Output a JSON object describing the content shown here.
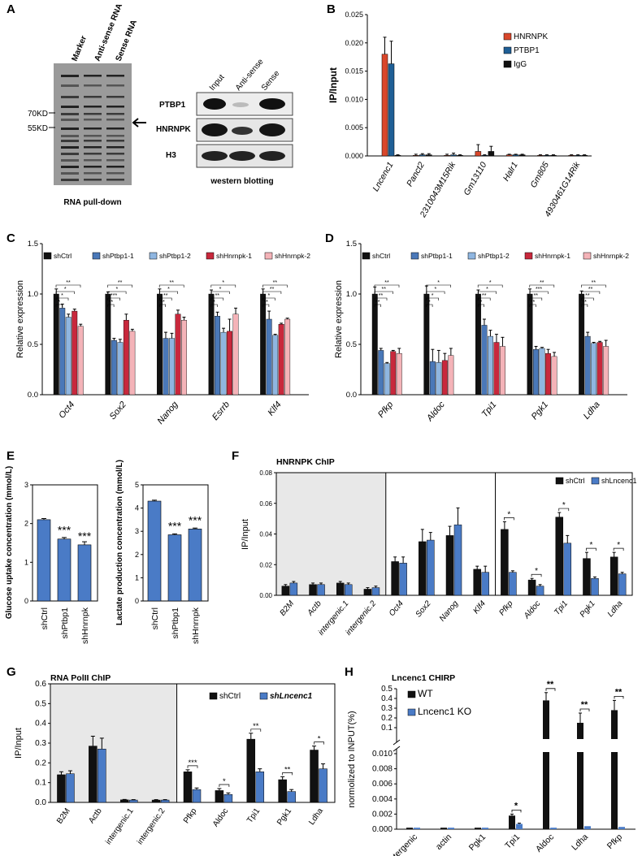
{
  "colors": {
    "hnrnpk": "#d9472b",
    "ptbp1": "#1f5f96",
    "igg": "#111111",
    "shctrl": "#111111",
    "shptbp1_1": "#4a78b8",
    "shptbp1_2": "#8fb6e0",
    "shhnrnpk_1": "#c8283c",
    "shhnrnpk_2": "#f4b3b8",
    "blue": "#4a7bc6",
    "gray_bg": "#e8e8e8"
  },
  "panels": {
    "A": {
      "letter": "A",
      "gel_lanes": [
        "Marker",
        "Anti-sense RNA",
        "Sense RNA"
      ],
      "markers": [
        "70KD",
        "55KD"
      ],
      "gel_caption": "RNA pull-down",
      "wb_lanes": [
        "Input",
        "Anti-sense",
        "Sense"
      ],
      "wb_rows": [
        "PTBP1",
        "HNRNPK",
        "H3"
      ],
      "wb_caption": "western blotting"
    },
    "B": {
      "letter": "B"
    },
    "C": {
      "letter": "C"
    },
    "D": {
      "letter": "D"
    },
    "E": {
      "letter": "E"
    },
    "F": {
      "letter": "F",
      "title": "HNRNPK ChIP"
    },
    "G": {
      "letter": "G",
      "title": "RNA PolII ChIP"
    },
    "H": {
      "letter": "H",
      "title": "Lncenc1 CHIRP"
    }
  },
  "chart_data": [
    {
      "id": "B",
      "type": "bar",
      "ylabel": "IP/Input",
      "ylim": [
        0,
        0.025
      ],
      "yticks": [
        "0.000",
        "0.005",
        "0.010",
        "0.015",
        "0.020",
        "0.025"
      ],
      "categories": [
        "Lncenc1",
        "Panct2",
        "2310043M15Rik",
        "Gm13110",
        "Halr1",
        "Gm805",
        "4930461G14Rik"
      ],
      "series": [
        {
          "name": "HNRNPK",
          "values": [
            0.018,
            0.0001,
            0.0001,
            0.0008,
            0.0002,
            0.0001,
            0.0001
          ],
          "err": [
            0.003,
            0.0002,
            0.0002,
            0.0012,
            0.0001,
            0.0001,
            0.0001
          ]
        },
        {
          "name": "PTBP1",
          "values": [
            0.0163,
            0.0002,
            0.0002,
            0.0001,
            0.0002,
            0.0001,
            0.0001
          ],
          "err": [
            0.004,
            0.0002,
            0.0003,
            0.0001,
            0.0001,
            0.0001,
            0.0001
          ]
        },
        {
          "name": "IgG",
          "values": [
            0.0001,
            0.0002,
            0.0001,
            0.0008,
            0.0002,
            0.0001,
            0.0001
          ],
          "err": [
            0.0001,
            0.0002,
            0.0001,
            0.0009,
            0.0001,
            0.0001,
            0.0001
          ]
        }
      ],
      "legend": "top-right"
    },
    {
      "id": "C",
      "type": "bar",
      "ylabel": "Relative expression",
      "ylim": [
        0,
        1.5
      ],
      "yticks": [
        "0.0",
        "0.5",
        "1.0",
        "1.5"
      ],
      "categories": [
        "Oct4",
        "Sox2",
        "Nanog",
        "Esrrb",
        "Klf4"
      ],
      "series": [
        {
          "name": "shCtrl",
          "values": [
            1.0,
            1.0,
            1.0,
            1.0,
            1.0
          ],
          "err": [
            0.05,
            0.02,
            0.05,
            0.04,
            0.05
          ]
        },
        {
          "name": "shPtbp1-1",
          "values": [
            0.86,
            0.54,
            0.56,
            0.78,
            0.75
          ],
          "err": [
            0.04,
            0.02,
            0.06,
            0.04,
            0.08
          ]
        },
        {
          "name": "shPtbp1-2",
          "values": [
            0.77,
            0.52,
            0.56,
            0.62,
            0.59
          ],
          "err": [
            0.03,
            0.03,
            0.05,
            0.04,
            0.01
          ]
        },
        {
          "name": "shHnrnpk-1",
          "values": [
            0.83,
            0.74,
            0.8,
            0.63,
            0.7
          ],
          "err": [
            0.02,
            0.06,
            0.04,
            0.12,
            0.01
          ]
        },
        {
          "name": "shHnrnpk-2",
          "values": [
            0.68,
            0.63,
            0.74,
            0.8,
            0.75
          ],
          "err": [
            0.02,
            0.02,
            0.03,
            0.06,
            0.01
          ]
        }
      ],
      "sig": [
        "*",
        "*",
        "*",
        "**"
      ],
      "sig_by_group": [
        [
          "*",
          "*",
          "*",
          "**"
        ],
        [
          "**",
          "***",
          "*",
          "**"
        ],
        [
          "**",
          "**",
          "*",
          "**"
        ],
        [
          "*",
          "**",
          "*",
          "*"
        ],
        [
          "**",
          "*",
          "**",
          "**"
        ]
      ],
      "legend": "top"
    },
    {
      "id": "D",
      "type": "bar",
      "ylabel": "Relative expression",
      "ylim": [
        0,
        1.5
      ],
      "yticks": [
        "0.0",
        "0.5",
        "1.0",
        "1.5"
      ],
      "categories": [
        "Pfkp",
        "Aldoc",
        "Tpi1",
        "Pgk1",
        "Ldha"
      ],
      "series": [
        {
          "name": "shCtrl",
          "values": [
            1.0,
            1.0,
            1.0,
            1.0,
            1.0
          ],
          "err": [
            0.07,
            0.08,
            0.04,
            0.05,
            0.03
          ]
        },
        {
          "name": "shPtbp1-1",
          "values": [
            0.44,
            0.33,
            0.69,
            0.45,
            0.58
          ],
          "err": [
            0.02,
            0.12,
            0.06,
            0.03,
            0.04
          ]
        },
        {
          "name": "shPtbp1-2",
          "values": [
            0.31,
            0.32,
            0.58,
            0.46,
            0.51
          ],
          "err": [
            0.01,
            0.12,
            0.06,
            0.01,
            0.01
          ]
        },
        {
          "name": "shHnrnpk-1",
          "values": [
            0.43,
            0.34,
            0.52,
            0.41,
            0.52
          ],
          "err": [
            0.01,
            0.07,
            0.08,
            0.04,
            0.01
          ]
        },
        {
          "name": "shHnrnpk-2",
          "values": [
            0.41,
            0.39,
            0.48,
            0.38,
            0.48
          ],
          "err": [
            0.05,
            0.07,
            0.09,
            0.04,
            0.06
          ]
        }
      ],
      "sig_by_group": [
        [
          "**",
          "**",
          "**",
          "**"
        ],
        [
          "*",
          "*",
          "*",
          "*"
        ],
        [
          "*",
          "**",
          "*",
          "*"
        ],
        [
          "**",
          "**",
          "***",
          "**"
        ],
        [
          "**",
          "**",
          "**",
          "**"
        ]
      ],
      "legend": "top"
    },
    {
      "id": "E1",
      "type": "bar",
      "ylabel": "Glucose uptake concentration (mmol/L)",
      "ylim": [
        0,
        3
      ],
      "yticks": [
        "0",
        "1",
        "2",
        "3"
      ],
      "categories": [
        "shCtrl",
        "shPtbp1",
        "shHnrnpk"
      ],
      "values": [
        2.1,
        1.6,
        1.45
      ],
      "err": [
        0.03,
        0.04,
        0.08
      ],
      "sig": [
        "",
        "***",
        "***"
      ]
    },
    {
      "id": "E2",
      "type": "bar",
      "ylabel": "Lactate production concentration (mmol/L)",
      "ylim": [
        0,
        5
      ],
      "yticks": [
        "0",
        "1",
        "2",
        "3",
        "4",
        "5"
      ],
      "categories": [
        "shCtrl",
        "shPtbp1",
        "shHnrnpk"
      ],
      "values": [
        4.3,
        2.85,
        3.1
      ],
      "err": [
        0.04,
        0.04,
        0.04
      ],
      "sig": [
        "",
        "***",
        "***"
      ]
    },
    {
      "id": "F",
      "type": "bar",
      "ylabel": "IP/Input",
      "ylim": [
        0,
        0.08
      ],
      "yticks": [
        "0.00",
        "0.02",
        "0.04",
        "0.06",
        "0.08"
      ],
      "categories": [
        "B2M",
        "Actb",
        "intergenic.1",
        "intergenic.2",
        "Oct4",
        "Sox2",
        "Nanog",
        "Klf4",
        "Pfkp",
        "Aldoc",
        "Tpi1",
        "Pgk1",
        "Ldha"
      ],
      "series": [
        {
          "name": "shCtrl",
          "values": [
            0.006,
            0.007,
            0.008,
            0.004,
            0.022,
            0.035,
            0.039,
            0.017,
            0.043,
            0.01,
            0.051,
            0.024,
            0.025
          ],
          "err": [
            0.001,
            0.001,
            0.001,
            0.001,
            0.003,
            0.008,
            0.006,
            0.002,
            0.005,
            0.001,
            0.003,
            0.004,
            0.003
          ]
        },
        {
          "name": "shLncenc1",
          "values": [
            0.008,
            0.007,
            0.007,
            0.005,
            0.021,
            0.036,
            0.046,
            0.015,
            0.015,
            0.006,
            0.034,
            0.011,
            0.014
          ],
          "err": [
            0.001,
            0.001,
            0.001,
            0.001,
            0.004,
            0.005,
            0.011,
            0.004,
            0.001,
            0.001,
            0.005,
            0.001,
            0.001
          ]
        }
      ],
      "sig": [
        "",
        "",
        "",
        "",
        "",
        "",
        "",
        "",
        "*",
        "*",
        "*",
        "*",
        "*"
      ],
      "legend": "top-right"
    },
    {
      "id": "G",
      "type": "bar",
      "ylabel": "IP/Input",
      "ylim": [
        0,
        0.6
      ],
      "yticks": [
        "0.0",
        "0.1",
        "0.2",
        "0.3",
        "0.4",
        "0.5",
        "0.6"
      ],
      "categories": [
        "B2M",
        "Actb",
        "intergenic.1",
        "intergenic.2",
        "Pfkp",
        "Aldoc",
        "Tpi1",
        "Pgk1",
        "Ldha"
      ],
      "series": [
        {
          "name": "shCtrl",
          "values": [
            0.14,
            0.285,
            0.013,
            0.012,
            0.155,
            0.06,
            0.32,
            0.115,
            0.265
          ],
          "err": [
            0.015,
            0.05,
            0.002,
            0.002,
            0.01,
            0.01,
            0.03,
            0.015,
            0.02
          ]
        },
        {
          "name": "shLncenc1",
          "values": [
            0.145,
            0.27,
            0.012,
            0.012,
            0.065,
            0.04,
            0.155,
            0.055,
            0.17
          ],
          "err": [
            0.015,
            0.055,
            0.002,
            0.002,
            0.008,
            0.008,
            0.015,
            0.01,
            0.025
          ]
        }
      ],
      "sig": [
        "",
        "",
        "",
        "",
        "***",
        "*",
        "**",
        "**",
        "*"
      ],
      "legend": "top-right"
    },
    {
      "id": "H",
      "type": "bar",
      "ylabel": "normolized to INPUT(%)",
      "yticks_upper": [
        "0.1",
        "0.2",
        "0.3",
        "0.4",
        "0.5"
      ],
      "yticks_lower": [
        "0.000",
        "0.002",
        "0.004",
        "0.006",
        "0.008",
        "0.010"
      ],
      "categories": [
        "intergenic",
        "actin",
        "Pgk1",
        "Tpi1",
        "Aldoc",
        "Ldha",
        "Pfkp"
      ],
      "series": [
        {
          "name": "WT",
          "values": [
            0.0002,
            0.0002,
            0.0002,
            0.0018,
            0.38,
            0.15,
            0.28
          ],
          "err": [
            0.0001,
            0.0001,
            0.0001,
            0.0002,
            0.08,
            0.1,
            0.1
          ]
        },
        {
          "name": "Lncenc1 KO",
          "values": [
            0.0002,
            0.0002,
            0.0002,
            0.0007,
            0.0002,
            0.0004,
            0.0003
          ],
          "err": [
            0.0001,
            0.0001,
            0.0001,
            0.0001,
            0.0001,
            0.0001,
            0.0001
          ]
        }
      ],
      "sig": [
        "",
        "",
        "",
        "*",
        "**",
        "**",
        "**"
      ],
      "legend": "top-left"
    }
  ]
}
